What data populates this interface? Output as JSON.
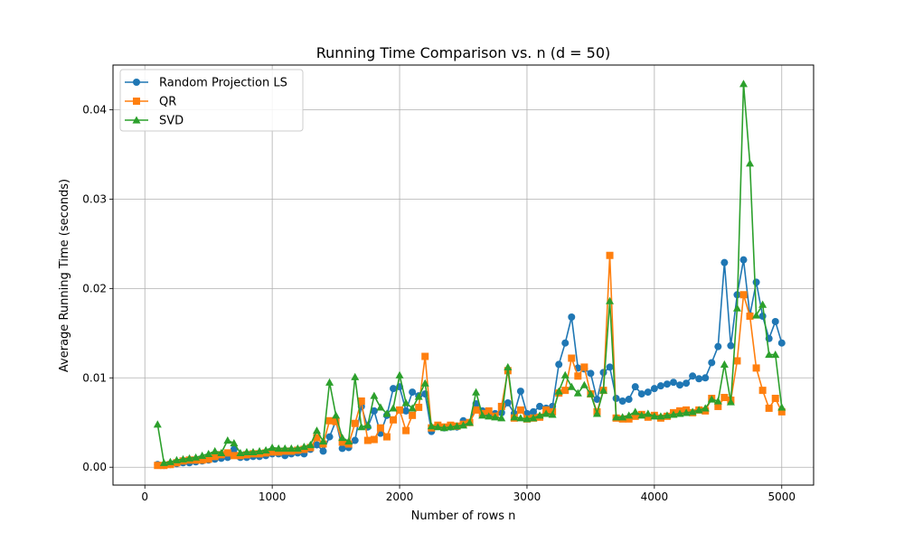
{
  "chart_data": {
    "type": "line",
    "title": "Running Time Comparison vs. n (d = 50)",
    "xlabel": "Number of rows n",
    "ylabel": "Average Running Time (seconds)",
    "xlim": [
      -250,
      5250
    ],
    "ylim": [
      -0.002,
      0.045
    ],
    "x_ticks": [
      0,
      1000,
      2000,
      3000,
      4000,
      5000
    ],
    "x_tick_labels": [
      "0",
      "1000",
      "2000",
      "3000",
      "4000",
      "5000"
    ],
    "y_ticks": [
      0.0,
      0.01,
      0.02,
      0.03,
      0.04
    ],
    "y_tick_labels": [
      "0.00",
      "0.01",
      "0.02",
      "0.03",
      "0.04"
    ],
    "grid": true,
    "legend": "top-left",
    "x": [
      100,
      150,
      200,
      250,
      300,
      350,
      400,
      450,
      500,
      550,
      600,
      650,
      700,
      750,
      800,
      850,
      900,
      950,
      1000,
      1050,
      1100,
      1150,
      1200,
      1250,
      1300,
      1350,
      1400,
      1450,
      1500,
      1550,
      1600,
      1650,
      1700,
      1750,
      1800,
      1850,
      1900,
      1950,
      2000,
      2050,
      2100,
      2150,
      2200,
      2250,
      2300,
      2350,
      2400,
      2450,
      2500,
      2550,
      2600,
      2650,
      2700,
      2750,
      2800,
      2850,
      2900,
      2950,
      3000,
      3050,
      3100,
      3150,
      3200,
      3250,
      3300,
      3350,
      3400,
      3450,
      3500,
      3550,
      3600,
      3650,
      3700,
      3750,
      3800,
      3850,
      3900,
      3950,
      4000,
      4050,
      4100,
      4150,
      4200,
      4250,
      4300,
      4350,
      4400,
      4450,
      4500,
      4550,
      4600,
      4650,
      4700,
      4750,
      4800,
      4850,
      4900,
      4950,
      5000
    ],
    "series": [
      {
        "name": "Random Projection LS",
        "color": "#1f77b4",
        "marker": "circle",
        "values": [
          0.0003,
          0.0002,
          0.0003,
          0.0004,
          0.0005,
          0.0005,
          0.0006,
          0.0007,
          0.0008,
          0.0009,
          0.001,
          0.0011,
          0.002,
          0.0011,
          0.0011,
          0.0012,
          0.0012,
          0.0013,
          0.0015,
          0.0015,
          0.0013,
          0.0015,
          0.0016,
          0.0015,
          0.002,
          0.0025,
          0.0018,
          0.0034,
          0.0052,
          0.0021,
          0.0022,
          0.003,
          0.0068,
          0.0045,
          0.0063,
          0.0038,
          0.0058,
          0.0088,
          0.009,
          0.0063,
          0.0084,
          0.008,
          0.0082,
          0.004,
          0.0046,
          0.0044,
          0.0045,
          0.0045,
          0.0052,
          0.005,
          0.0071,
          0.0063,
          0.006,
          0.006,
          0.0061,
          0.0072,
          0.006,
          0.0085,
          0.006,
          0.0062,
          0.0068,
          0.0066,
          0.0068,
          0.0115,
          0.0139,
          0.0168,
          0.0111,
          0.011,
          0.0105,
          0.0076,
          0.0106,
          0.0112,
          0.0077,
          0.0074,
          0.0076,
          0.009,
          0.0082,
          0.0084,
          0.0088,
          0.0091,
          0.0093,
          0.0095,
          0.0092,
          0.0094,
          0.0102,
          0.0099,
          0.01,
          0.0117,
          0.0135,
          0.0229,
          0.0136,
          0.0193,
          0.0232,
          0.017,
          0.0207,
          0.0169,
          0.0144,
          0.0163,
          0.0139
        ]
      },
      {
        "name": "QR",
        "color": "#ff7f0e",
        "marker": "square",
        "values": [
          0.0002,
          0.0002,
          0.0003,
          0.0005,
          0.0007,
          0.0008,
          0.0008,
          0.0008,
          0.0009,
          0.0012,
          0.0014,
          0.0016,
          0.0013,
          0.0013,
          0.0014,
          0.0015,
          0.0015,
          0.0016,
          0.0017,
          0.0017,
          0.0018,
          0.0018,
          0.0019,
          0.002,
          0.0022,
          0.0033,
          0.0026,
          0.0052,
          0.0051,
          0.0028,
          0.0026,
          0.0049,
          0.0074,
          0.003,
          0.0031,
          0.0044,
          0.0034,
          0.0053,
          0.0064,
          0.0041,
          0.0058,
          0.0067,
          0.0124,
          0.0044,
          0.0047,
          0.0045,
          0.0047,
          0.0046,
          0.0048,
          0.005,
          0.0064,
          0.006,
          0.0063,
          0.0057,
          0.0068,
          0.0108,
          0.0055,
          0.0064,
          0.0054,
          0.0055,
          0.0056,
          0.0064,
          0.0062,
          0.0083,
          0.0086,
          0.0122,
          0.0102,
          0.0112,
          0.0082,
          0.0062,
          0.0086,
          0.0237,
          0.0055,
          0.0054,
          0.0054,
          0.0057,
          0.0059,
          0.0056,
          0.0058,
          0.0055,
          0.0057,
          0.0061,
          0.0063,
          0.0064,
          0.0061,
          0.0064,
          0.0063,
          0.0077,
          0.0068,
          0.0078,
          0.0075,
          0.0119,
          0.0193,
          0.0169,
          0.0111,
          0.0086,
          0.0066,
          0.0077,
          0.0062
        ]
      },
      {
        "name": "SVD",
        "color": "#2ca02c",
        "marker": "triangle",
        "values": [
          0.0048,
          0.0005,
          0.0006,
          0.0008,
          0.0009,
          0.001,
          0.0011,
          0.0013,
          0.0015,
          0.0018,
          0.0016,
          0.003,
          0.0027,
          0.0016,
          0.0017,
          0.0017,
          0.0018,
          0.0019,
          0.0022,
          0.0021,
          0.0021,
          0.0021,
          0.0021,
          0.0023,
          0.0025,
          0.0041,
          0.0029,
          0.0095,
          0.0058,
          0.0033,
          0.0029,
          0.0101,
          0.0045,
          0.0047,
          0.008,
          0.0067,
          0.006,
          0.0066,
          0.0103,
          0.0072,
          0.0066,
          0.0079,
          0.0094,
          0.0046,
          0.0045,
          0.0044,
          0.0045,
          0.0046,
          0.0047,
          0.005,
          0.0084,
          0.0058,
          0.0057,
          0.0056,
          0.0055,
          0.0112,
          0.0056,
          0.0055,
          0.0054,
          0.0055,
          0.0058,
          0.006,
          0.0059,
          0.0085,
          0.0103,
          0.009,
          0.0083,
          0.0092,
          0.0082,
          0.006,
          0.0086,
          0.0186,
          0.0056,
          0.0056,
          0.0058,
          0.0062,
          0.0058,
          0.006,
          0.0057,
          0.0057,
          0.0058,
          0.0059,
          0.006,
          0.0061,
          0.0062,
          0.0064,
          0.0066,
          0.0076,
          0.0074,
          0.0115,
          0.0073,
          0.0178,
          0.0429,
          0.034,
          0.017,
          0.0182,
          0.0126,
          0.0126,
          0.0067
        ]
      }
    ]
  }
}
